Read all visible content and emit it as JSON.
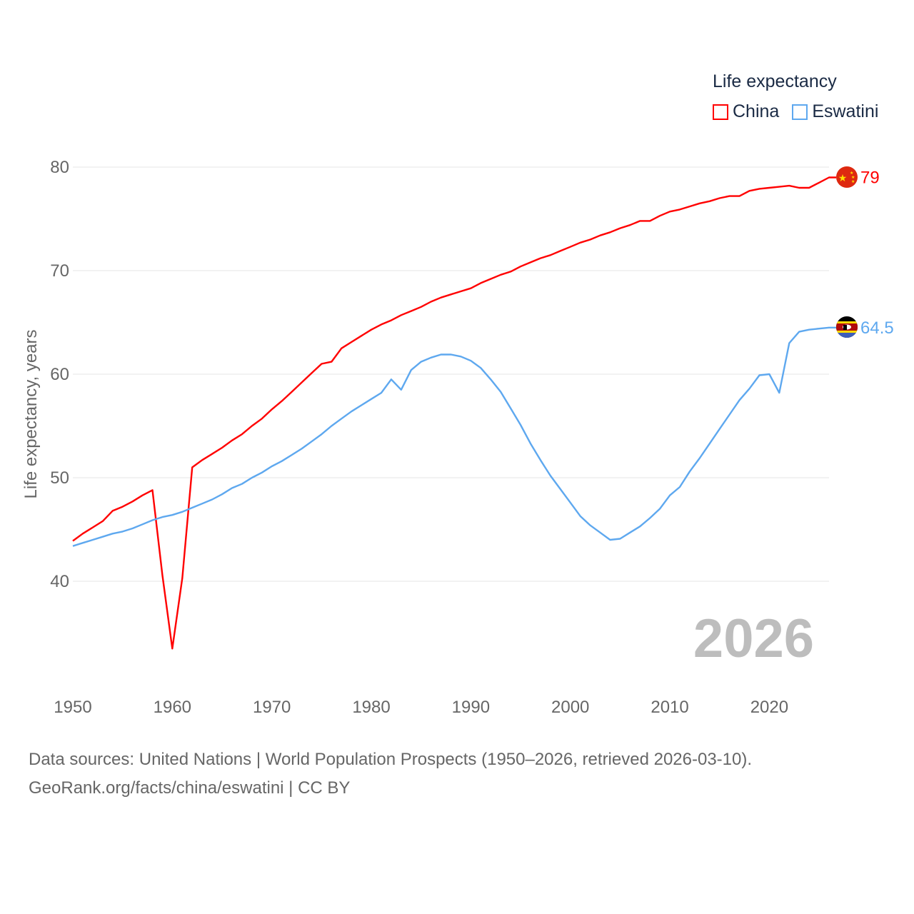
{
  "chart_data": {
    "type": "line",
    "title": "Life expectancy",
    "ylabel": "Life expectancy, years",
    "xlabel": "",
    "xlim": [
      1950,
      2026
    ],
    "ylim": [
      30,
      82
    ],
    "yticks": [
      40,
      50,
      60,
      70,
      80
    ],
    "xticks": [
      1950,
      1960,
      1970,
      1980,
      1990,
      2000,
      2010,
      2020
    ],
    "grid": true,
    "legend_position": "top-right",
    "year_label": "2026",
    "x_start": 1950,
    "series": [
      {
        "name": "China",
        "color": "#ff0000",
        "end_label": "79",
        "values": [
          43.9,
          44.6,
          45.2,
          45.8,
          46.8,
          47.2,
          47.7,
          48.3,
          48.8,
          40.6,
          33.5,
          40.3,
          51.0,
          51.7,
          52.3,
          52.9,
          53.6,
          54.2,
          55.0,
          55.7,
          56.6,
          57.4,
          58.3,
          59.2,
          60.1,
          61.0,
          61.2,
          62.5,
          63.1,
          63.7,
          64.3,
          64.8,
          65.2,
          65.7,
          66.1,
          66.5,
          67.0,
          67.4,
          67.7,
          68.0,
          68.3,
          68.8,
          69.2,
          69.6,
          69.9,
          70.4,
          70.8,
          71.2,
          71.5,
          71.9,
          72.3,
          72.7,
          73.0,
          73.4,
          73.7,
          74.1,
          74.4,
          74.8,
          74.8,
          75.3,
          75.7,
          75.9,
          76.2,
          76.5,
          76.7,
          77.0,
          77.2,
          77.2,
          77.7,
          77.9,
          78.0,
          78.1,
          78.2,
          78.0,
          78.0,
          78.5,
          79.0
        ]
      },
      {
        "name": "Eswatini",
        "color": "#5ea8ef",
        "end_label": "64.5",
        "values": [
          43.4,
          43.7,
          44.0,
          44.3,
          44.6,
          44.8,
          45.1,
          45.5,
          45.9,
          46.2,
          46.4,
          46.7,
          47.1,
          47.5,
          47.9,
          48.4,
          49.0,
          49.4,
          50.0,
          50.5,
          51.1,
          51.6,
          52.2,
          52.8,
          53.5,
          54.2,
          55.0,
          55.7,
          56.4,
          57.0,
          57.6,
          58.2,
          59.5,
          58.5,
          60.4,
          61.2,
          61.6,
          61.9,
          61.9,
          61.7,
          61.3,
          60.6,
          59.5,
          58.3,
          56.7,
          55.1,
          53.3,
          51.7,
          50.2,
          48.9,
          47.6,
          46.3,
          45.4,
          44.7,
          44.0,
          44.1,
          44.7,
          45.3,
          46.1,
          47.0,
          48.3,
          49.1,
          50.6,
          51.9,
          53.3,
          54.7,
          56.1,
          57.5,
          58.6,
          59.9,
          60.0,
          58.2,
          63.0,
          64.1,
          64.3,
          64.4,
          64.5
        ]
      }
    ]
  },
  "legend": {
    "title": "Life expectancy",
    "items": [
      "China",
      "Eswatini"
    ]
  },
  "source": {
    "line1": "Data sources: United Nations | World Population Prospects (1950–2026, retrieved 2026-03-10).",
    "line2": "GeoRank.org/facts/china/eswatini | CC BY"
  }
}
